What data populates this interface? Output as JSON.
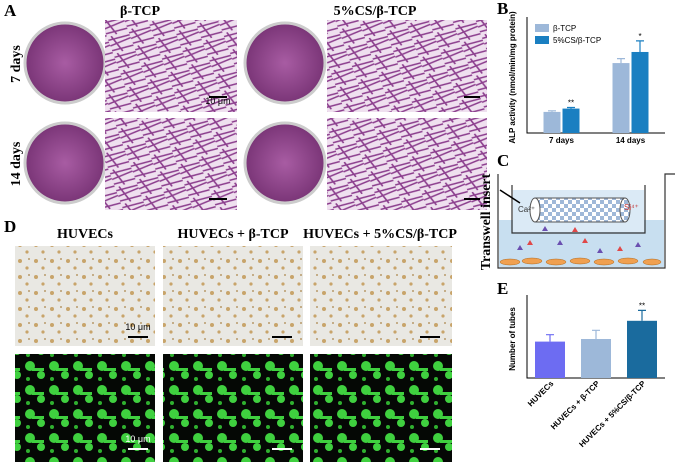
{
  "figure": {
    "panels": [
      "A",
      "B",
      "C",
      "D",
      "E"
    ],
    "a_columns": [
      "β-TCP",
      "5%CS/β-TCP"
    ],
    "a_rows": [
      "7 days",
      "14 days"
    ],
    "scale_bar": "10 μm",
    "c_insert": "Transwell insert",
    "c_ions": [
      "Ca²⁺",
      "Si⁴⁺"
    ],
    "d_columns": [
      "HUVECs",
      "HUVECs + β-TCP",
      "HUVECs + 5%CS/β-TCP"
    ]
  },
  "chart_data": [
    {
      "type": "bar",
      "y_label": "ALP activity (nmol/min/mg protein)",
      "categories": [
        "7 days",
        "14 days"
      ],
      "ylim": [
        0,
        10
      ],
      "series": [
        {
          "name": "β-TCP",
          "color": "#9db8d9",
          "values": [
            1.9,
            6.3
          ],
          "errors": [
            0.1,
            0.4
          ]
        },
        {
          "name": "5%CS/β-TCP",
          "color": "#1a7fc1",
          "values": [
            2.2,
            7.3
          ],
          "errors": [
            0.1,
            1.0
          ],
          "significance": [
            "**",
            "*"
          ]
        }
      ]
    },
    {
      "type": "bar",
      "y_label": "Number of tubes",
      "categories": [
        "HUVECs",
        "HUVECs + β-TCP",
        "HUVECs + 5%CS/β-TCP"
      ],
      "ylim": [
        0,
        45
      ],
      "values": [
        21,
        22.5,
        33
      ],
      "errors": [
        4,
        5,
        6
      ],
      "colors": [
        "#6d6cf2",
        "#9db8d9",
        "#1a6b9e"
      ],
      "significance": [
        null,
        null,
        "**"
      ]
    }
  ]
}
